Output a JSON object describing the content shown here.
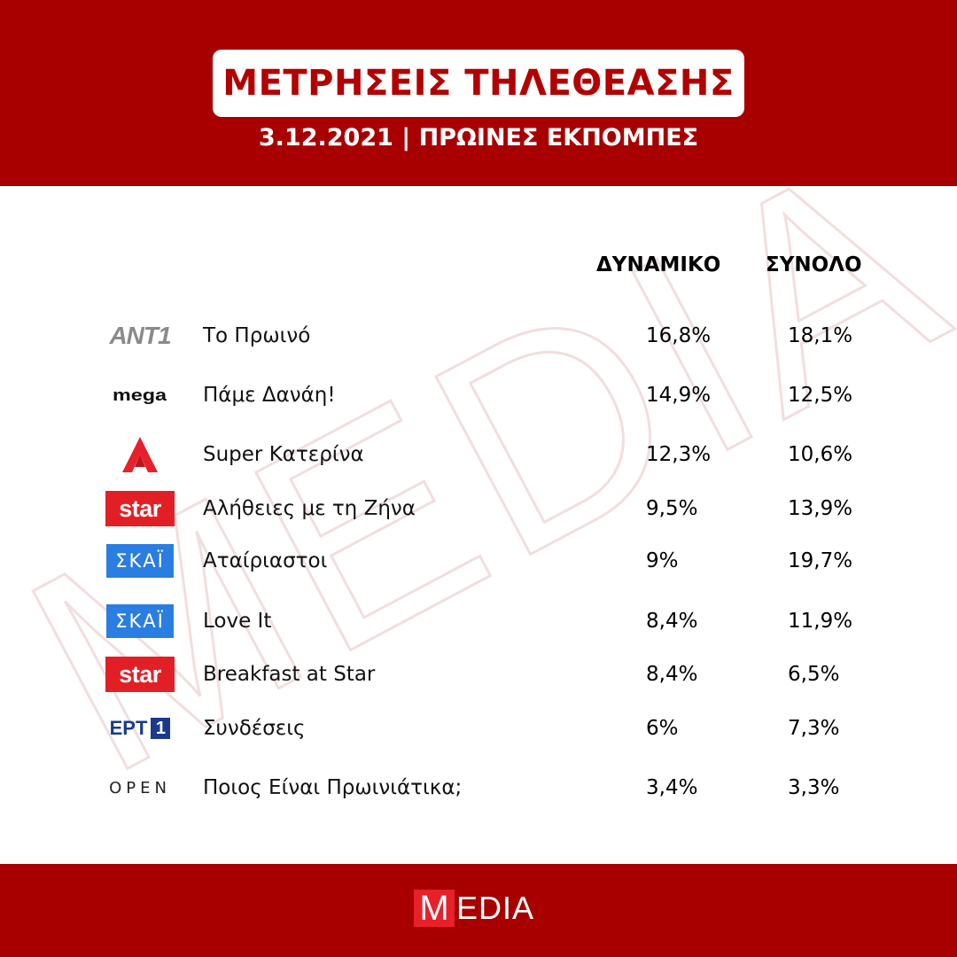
{
  "header": {
    "title": "ΜΕΤΡΗΣΕΙΣ ΤΗΛΕΘΕΑΣΗΣ",
    "subtitle": "3.12.2021 | ΠΡΩΙΝΕΣ ΕΚΠΟΜΠΕΣ"
  },
  "columns": {
    "dynamiko": "ΔΥΝΑΜΙΚΟ",
    "synolo": "ΣΥΝΟΛΟ"
  },
  "watermark": "MEDIA",
  "rows": [
    {
      "logo": "ANT1",
      "logo_icon": "ant1-logo-icon",
      "show": "Το Πρωινό",
      "dynamiko": "16,8%",
      "synolo": "18,1%"
    },
    {
      "logo": "mega",
      "logo_icon": "mega-logo-icon",
      "show": "Πάμε Δανάη!",
      "dynamiko": "14,9%",
      "synolo": "12,5%"
    },
    {
      "logo": "Α",
      "logo_icon": "alpha-logo-icon",
      "show": "Super Κατερίνα",
      "dynamiko": "12,3%",
      "synolo": "10,6%"
    },
    {
      "logo": "star",
      "logo_icon": "star-logo-icon",
      "show": "Αλήθειες με τη Ζήνα",
      "dynamiko": "9,5%",
      "synolo": "13,9%"
    },
    {
      "logo": "ΣΚΑΪ",
      "logo_icon": "skai-logo-icon",
      "show": "Αταίριαστοι",
      "dynamiko": "9%",
      "synolo": "19,7%"
    },
    {
      "logo": "ΣΚΑΪ",
      "logo_icon": "skai-logo-icon",
      "show": "Love It",
      "dynamiko": "8,4%",
      "synolo": "11,9%"
    },
    {
      "logo": "star",
      "logo_icon": "star-logo-icon",
      "show": "Breakfast at Star",
      "dynamiko": "8,4%",
      "synolo": "6,5%"
    },
    {
      "logo": "ΕΡΤ1",
      "logo_icon": "ert1-logo-icon",
      "show": "Συνδέσεις",
      "dynamiko": "6%",
      "synolo": "7,3%"
    },
    {
      "logo": "OPEN",
      "logo_icon": "open-logo-icon",
      "show": "Ποιος Είναι Πρωινιάτικα;",
      "dynamiko": "3,4%",
      "synolo": "3,3%"
    }
  ],
  "footer": {
    "brand_initial": "M",
    "brand_rest": "EDIA"
  },
  "colors": {
    "brand_red": "#a80000",
    "title_red": "#b30000",
    "star_red": "#e31f26",
    "skai_blue": "#2a7de1",
    "ert_blue": "#1b3a8c"
  }
}
